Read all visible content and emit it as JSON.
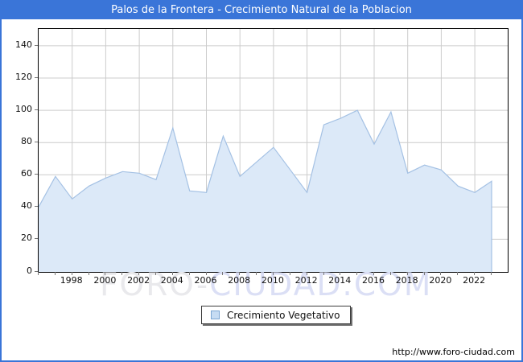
{
  "window": {
    "title": "Palos de la Frontera - Crecimiento Natural de la Poblacion",
    "titlebar_color": "#3a75d8"
  },
  "legend": {
    "label": "Crecimiento Vegetativo"
  },
  "watermark": {
    "part1": "FORO-",
    "part2": "CIUDAD.COM",
    "part1_color": "#e9e9ec",
    "part2_color": "#dbdff5"
  },
  "footer": {
    "url": "http://www.foro-ciudad.com"
  },
  "chart_data": {
    "type": "area",
    "title": "Palos de la Frontera - Crecimiento Natural de la Poblacion",
    "series_name": "Crecimiento Vegetativo",
    "categories": [
      1996,
      1997,
      1998,
      1999,
      2000,
      2001,
      2002,
      2003,
      2004,
      2005,
      2006,
      2007,
      2008,
      2009,
      2010,
      2011,
      2012,
      2013,
      2014,
      2015,
      2016,
      2017,
      2018,
      2019,
      2020,
      2021,
      2022,
      2023
    ],
    "values": [
      40,
      59,
      45,
      53,
      58,
      62,
      61,
      57,
      89,
      50,
      49,
      84,
      59,
      68,
      77,
      63,
      49,
      91,
      95,
      100,
      79,
      99,
      61,
      66,
      63,
      53,
      49,
      56
    ],
    "ylim": [
      0,
      150
    ],
    "y_ticks": [
      0,
      20,
      40,
      60,
      80,
      100,
      120,
      140
    ],
    "x_tick_labels": [
      1998,
      2000,
      2002,
      2004,
      2006,
      2008,
      2010,
      2012,
      2014,
      2016,
      2018,
      2020,
      2022
    ],
    "grid": true,
    "legend_position": "bottom-center",
    "colors": {
      "line": "#a4c1e4",
      "fill": "#dce9f8",
      "gridline": "#cccccc",
      "swatch_fill": "#c6dcf3",
      "swatch_border": "#7aa5d2"
    }
  }
}
